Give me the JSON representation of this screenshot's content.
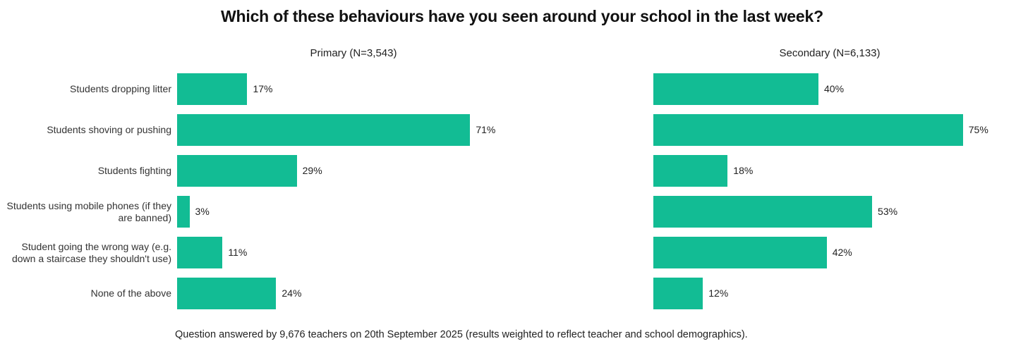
{
  "title": "Which of these behaviours have you seen around your school in the last week?",
  "footer": "Question answered by 9,676 teachers on 20th September 2025 (results weighted to reflect teacher and school demographics).",
  "colors": {
    "bar": "#12BC94",
    "title_text": "#111111",
    "label_text": "#333333"
  },
  "chart_data": {
    "type": "bar",
    "orientation": "horizontal",
    "title": "Which of these behaviours have you seen around your school in the last week?",
    "categories": [
      "Students dropping litter",
      "Students shoving or pushing",
      "Students fighting",
      "Students using mobile phones (if they are banned)",
      "Student going the wrong way (e.g. down a staircase they shouldn't use)",
      "None of the above"
    ],
    "series": [
      {
        "name": "Primary (N=3,543)",
        "values": [
          17,
          71,
          29,
          3,
          11,
          24
        ]
      },
      {
        "name": "Secondary (N=6,133)",
        "values": [
          40,
          75,
          18,
          53,
          42,
          12
        ]
      }
    ],
    "value_suffix": "%",
    "xlim": [
      0,
      100
    ],
    "grid": false,
    "legend_position": "panel-headers",
    "annotation": "Question answered by 9,676 teachers on 20th September 2025 (results weighted to reflect teacher and school demographics)."
  }
}
